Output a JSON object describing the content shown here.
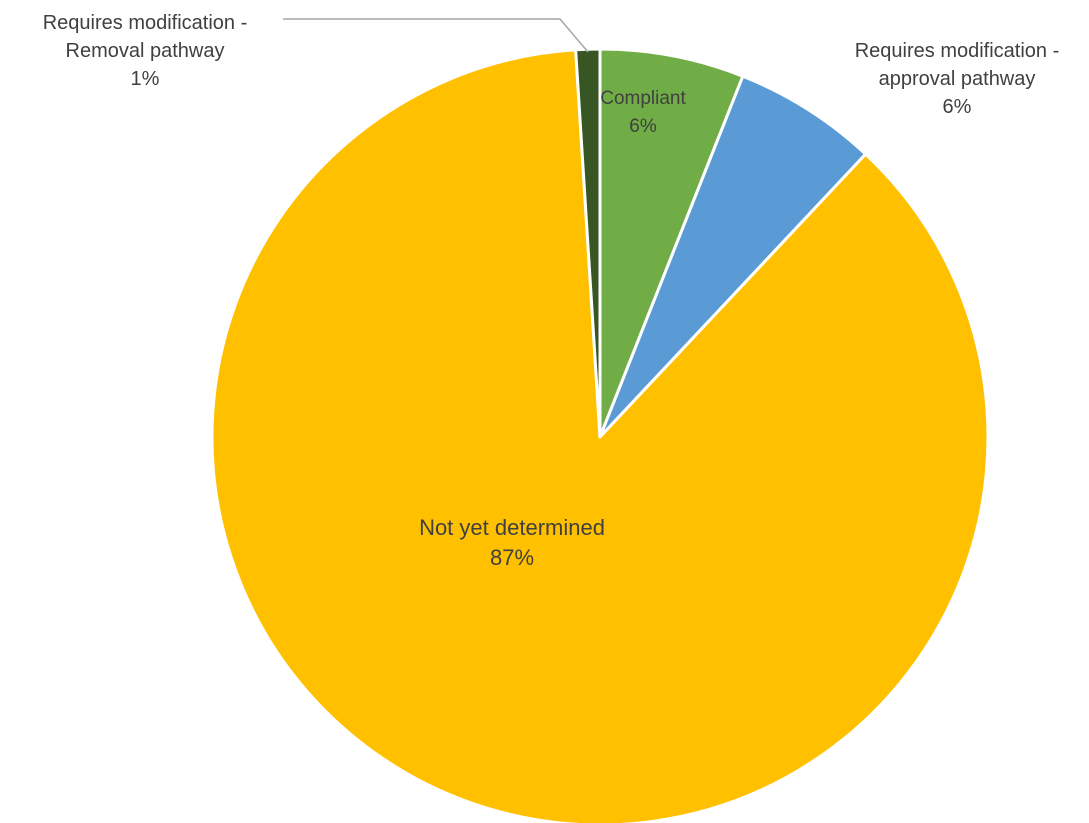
{
  "chart_data": {
    "type": "pie",
    "title": "",
    "slices": [
      {
        "name": "Compliant",
        "value": 6,
        "label_value": "6%",
        "color": "#70AD47"
      },
      {
        "name": "Requires modification - approval pathway",
        "label_lines": [
          "Requires modification -",
          "approval pathway"
        ],
        "value": 6,
        "label_value": "6%",
        "color": "#5B9BD5"
      },
      {
        "name": "Not yet determined",
        "value": 87,
        "label_value": "87%",
        "color": "#FFC000"
      },
      {
        "name": "Requires modification - Removal pathway",
        "label_lines": [
          "Requires modification -",
          "Removal pathway"
        ],
        "value": 1,
        "label_value": "1%",
        "color": "#375623"
      }
    ],
    "start_angle_deg": 0,
    "direction": "clockwise",
    "legend": "none",
    "slice_border_color": "#ffffff",
    "leader_line_color": "#A6A6A6"
  }
}
